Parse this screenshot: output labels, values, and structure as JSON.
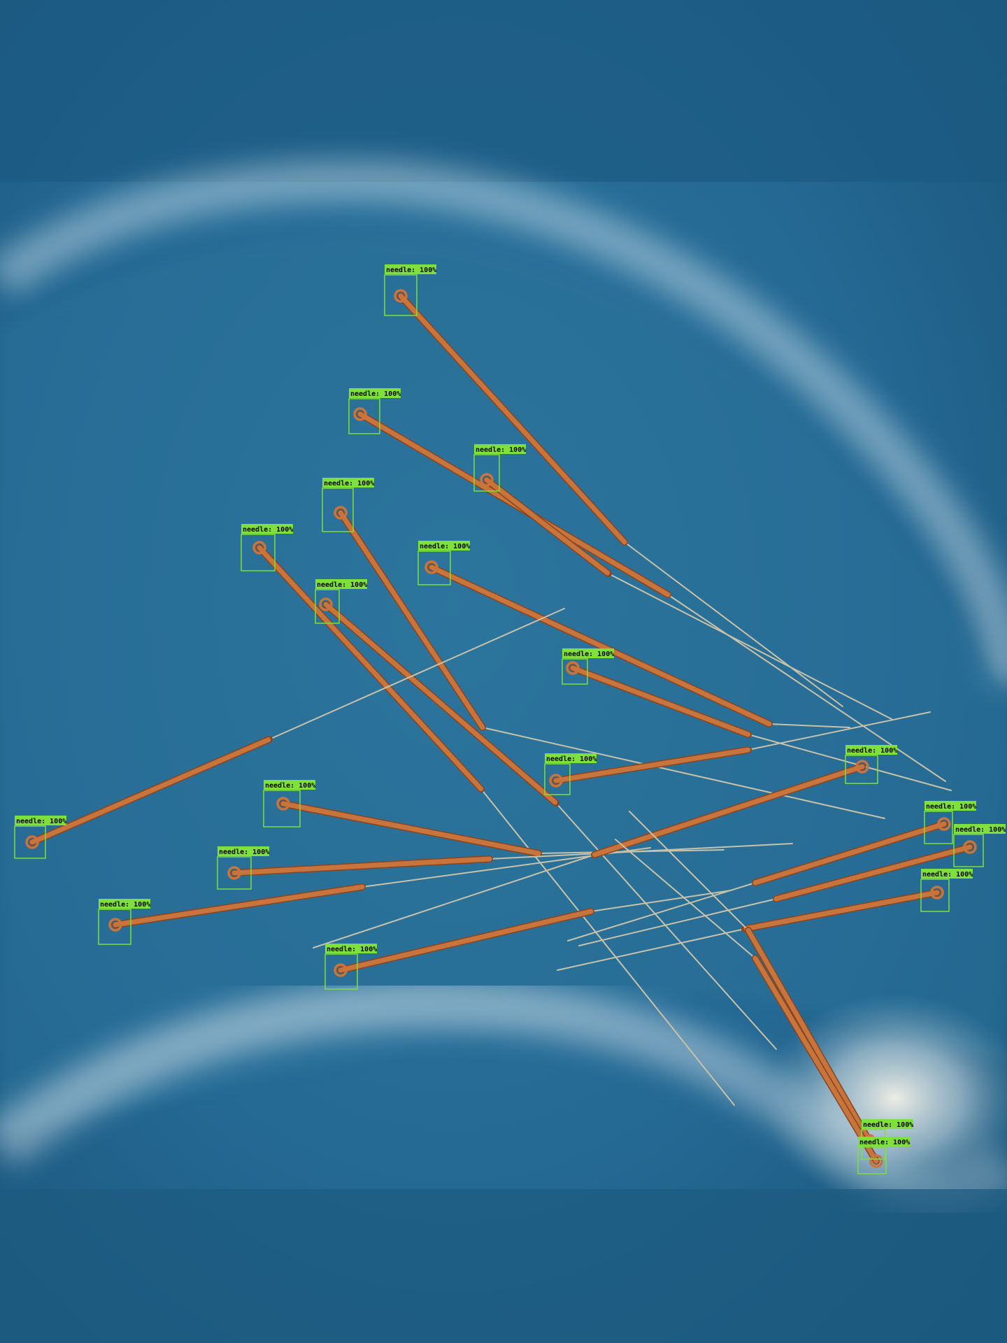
{
  "colors": {
    "tray_dark": "#1b5579",
    "tray_mid": "#2a6d95",
    "tray_highlight": "#c8dde8",
    "handle": "#c8743d",
    "handle_dark": "#8a4520",
    "shaft": "#c9c2a8",
    "box": "#7ee03a",
    "label_bg": "#7ee03a",
    "label_text": "#000000"
  },
  "detections": [
    {
      "label": "needle: 100%"
    },
    {
      "label": "needle: 100%"
    },
    {
      "label": "needle: 100%"
    },
    {
      "label": "needle: 100%"
    },
    {
      "label": "needle: 100%"
    },
    {
      "label": "needle: 100%"
    },
    {
      "label": "needle: 100%"
    },
    {
      "label": "needle: 100%"
    },
    {
      "label": "needle: 100%"
    },
    {
      "label": "needle: 100%"
    },
    {
      "label": "needle: 100%"
    },
    {
      "label": "needle: 100%"
    },
    {
      "label": "needle: 100%"
    },
    {
      "label": "needle: 100%"
    },
    {
      "label": "needle: 100%"
    },
    {
      "label": "needle: 100%"
    },
    {
      "label": "needle: 100%"
    },
    {
      "label": "needle: 100%"
    },
    {
      "label": "needle: 100%"
    },
    {
      "label": "needle: 100%"
    }
  ]
}
